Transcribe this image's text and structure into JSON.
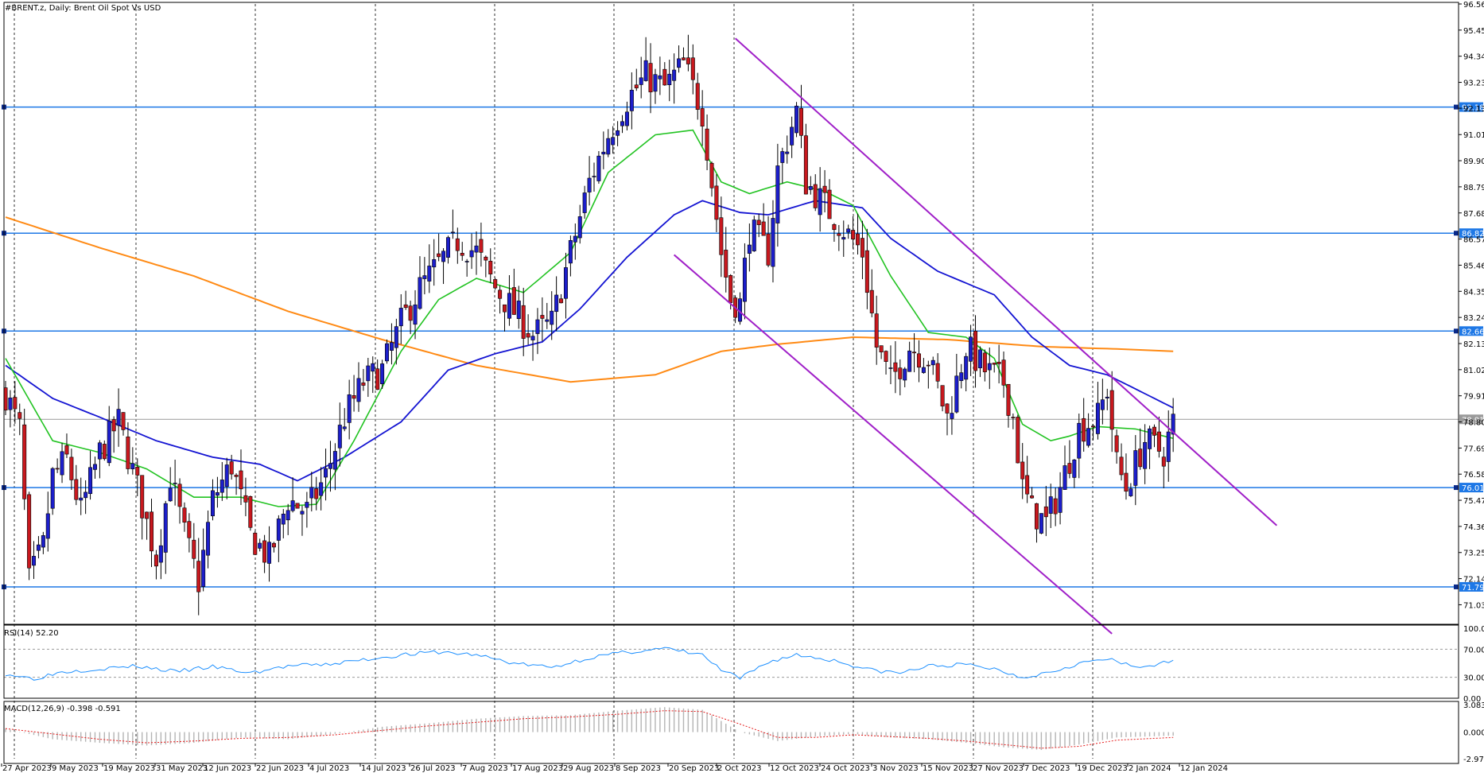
{
  "chart_data": [
    {
      "type": "candlestick",
      "title": "#BRENT.z, Daily:  Brent Oil Spot Vs USD",
      "symbol": "#BRENT.z",
      "timeframe": "Daily",
      "description": "Brent Oil Spot Vs USD",
      "ylim": [
        70.2,
        96.56
      ],
      "y_ticks": [
        "96.56",
        "95.45",
        "94.34",
        "93.23",
        "92.13",
        "91.01",
        "89.90",
        "88.79",
        "87.68",
        "86.57",
        "85.46",
        "84.35",
        "83.24",
        "82.13",
        "81.02",
        "79.91",
        "78.80",
        "77.69",
        "76.58",
        "75.47",
        "74.36",
        "73.25",
        "72.14",
        "71.03"
      ],
      "x_ticks": [
        "27 Apr 2023",
        "9 May 2023",
        "19 May 2023",
        "31 May 2023",
        "12 Jun 2023",
        "22 Jun 2023",
        "4 Jul 2023",
        "14 Jul 2023",
        "26 Jul 2023",
        "7 Aug 2023",
        "17 Aug 2023",
        "29 Aug 2023",
        "8 Sep 2023",
        "20 Sep 2023",
        "2 Oct 2023",
        "12 Oct 2023",
        "24 Oct 2023",
        "3 Nov 2023",
        "15 Nov 2023",
        "27 Nov 2023",
        "7 Dec 2023",
        "19 Dec 2023",
        "2 Jan 2024",
        "12 Jan 2024"
      ],
      "grid": true,
      "current_price": "78.91",
      "horizontal_levels": [
        {
          "value": 92.18,
          "label": "92.18"
        },
        {
          "value": 86.82,
          "label": "86.82"
        },
        {
          "value": 82.66,
          "label": "82.66"
        },
        {
          "value": 76.01,
          "label": "76.01"
        },
        {
          "value": 71.79,
          "label": "71.79"
        }
      ],
      "colors": {
        "bull": "#1c1ecb",
        "bear": "#c8181e",
        "ma_fast": "#22c322",
        "ma_mid": "#1414d2",
        "ma_slow": "#ff8a14",
        "level": "#1e78e6",
        "channel": "#a020c8"
      },
      "channel": {
        "upper": [
          {
            "i": 155,
            "v": 95.1
          },
          {
            "i": 270,
            "v": 74.4
          }
        ],
        "lower": [
          {
            "i": 142,
            "v": 85.9
          },
          {
            "i": 235,
            "v": 69.8
          }
        ]
      },
      "close_anchors": [
        [
          0,
          80
        ],
        [
          3,
          78.5
        ],
        [
          5,
          72
        ],
        [
          8,
          73.5
        ],
        [
          10,
          76.5
        ],
        [
          13,
          77.2
        ],
        [
          16,
          75
        ],
        [
          20,
          77.5
        ],
        [
          24,
          78.8
        ],
        [
          28,
          76
        ],
        [
          32,
          73
        ],
        [
          35,
          76.5
        ],
        [
          38,
          74
        ],
        [
          41,
          72
        ],
        [
          44,
          75.5
        ],
        [
          48,
          77
        ],
        [
          52,
          74
        ],
        [
          56,
          73
        ],
        [
          60,
          75.5
        ],
        [
          64,
          75
        ],
        [
          68,
          76.5
        ],
        [
          72,
          79
        ],
        [
          76,
          80.5
        ],
        [
          80,
          81
        ],
        [
          84,
          83
        ],
        [
          88,
          84.5
        ],
        [
          92,
          85.5
        ],
        [
          96,
          86.5
        ],
        [
          100,
          86
        ],
        [
          104,
          84.5
        ],
        [
          108,
          83.5
        ],
        [
          112,
          82.5
        ],
        [
          116,
          83
        ],
        [
          120,
          86
        ],
        [
          124,
          89
        ],
        [
          128,
          91
        ],
        [
          132,
          92.5
        ],
        [
          136,
          93.5
        ],
        [
          140,
          93
        ],
        [
          144,
          94
        ],
        [
          148,
          92
        ],
        [
          150,
          89
        ],
        [
          152,
          86
        ],
        [
          154,
          84
        ],
        [
          156,
          83.8
        ],
        [
          158,
          87
        ],
        [
          162,
          86
        ],
        [
          164,
          89.5
        ],
        [
          168,
          92
        ],
        [
          170,
          89
        ],
        [
          174,
          88
        ],
        [
          178,
          87
        ],
        [
          182,
          86
        ],
        [
          185,
          82
        ],
        [
          188,
          80.5
        ],
        [
          192,
          82
        ],
        [
          196,
          81.5
        ],
        [
          200,
          79
        ],
        [
          204,
          82
        ],
        [
          208,
          81
        ],
        [
          212,
          80.5
        ],
        [
          214,
          79
        ],
        [
          216,
          76
        ],
        [
          218,
          75
        ],
        [
          221,
          74.5
        ],
        [
          224,
          76
        ],
        [
          228,
          78.5
        ],
        [
          232,
          79
        ],
        [
          234,
          80.2
        ],
        [
          236,
          77
        ],
        [
          238,
          76
        ],
        [
          242,
          78
        ],
        [
          246,
          77.5
        ],
        [
          248,
          78.8
        ]
      ],
      "ma_fast_anchors": [
        [
          0,
          81.5
        ],
        [
          10,
          78
        ],
        [
          20,
          77.5
        ],
        [
          30,
          76.8
        ],
        [
          40,
          75.6
        ],
        [
          50,
          75.6
        ],
        [
          58,
          75.2
        ],
        [
          66,
          75.3
        ],
        [
          74,
          78
        ],
        [
          84,
          81.8
        ],
        [
          92,
          84
        ],
        [
          100,
          84.9
        ],
        [
          110,
          84.3
        ],
        [
          120,
          86
        ],
        [
          128,
          89.4
        ],
        [
          138,
          91
        ],
        [
          146,
          91.2
        ],
        [
          152,
          89
        ],
        [
          158,
          88.5
        ],
        [
          166,
          89
        ],
        [
          174,
          88.6
        ],
        [
          180,
          88
        ],
        [
          188,
          85
        ],
        [
          196,
          82.6
        ],
        [
          204,
          82.4
        ],
        [
          210,
          81.5
        ],
        [
          216,
          78.7
        ],
        [
          222,
          78
        ],
        [
          226,
          78.2
        ],
        [
          232,
          78.6
        ],
        [
          240,
          78.5
        ],
        [
          248,
          78.1
        ]
      ],
      "ma_mid_anchors": [
        [
          0,
          81.2
        ],
        [
          10,
          79.8
        ],
        [
          20,
          79
        ],
        [
          32,
          78
        ],
        [
          44,
          77.3
        ],
        [
          54,
          77
        ],
        [
          62,
          76.3
        ],
        [
          72,
          77.3
        ],
        [
          84,
          78.8
        ],
        [
          94,
          81
        ],
        [
          104,
          81.7
        ],
        [
          114,
          82.2
        ],
        [
          122,
          83.6
        ],
        [
          132,
          85.8
        ],
        [
          142,
          87.6
        ],
        [
          148,
          88.2
        ],
        [
          156,
          87.7
        ],
        [
          162,
          87.6
        ],
        [
          172,
          88.2
        ],
        [
          182,
          87.9
        ],
        [
          188,
          86.6
        ],
        [
          198,
          85.2
        ],
        [
          210,
          84.2
        ],
        [
          218,
          82.4
        ],
        [
          226,
          81.2
        ],
        [
          234,
          80.8
        ],
        [
          242,
          80
        ],
        [
          248,
          79.4
        ]
      ],
      "ma_slow_anchors": [
        [
          0,
          87.5
        ],
        [
          20,
          86.2
        ],
        [
          40,
          85
        ],
        [
          60,
          83.5
        ],
        [
          80,
          82.3
        ],
        [
          100,
          81.2
        ],
        [
          120,
          80.5
        ],
        [
          138,
          80.8
        ],
        [
          152,
          81.8
        ],
        [
          164,
          82.1
        ],
        [
          180,
          82.4
        ],
        [
          200,
          82.3
        ],
        [
          220,
          82
        ],
        [
          236,
          81.9
        ],
        [
          248,
          81.8
        ]
      ],
      "dates_count": 249
    },
    {
      "type": "line",
      "title": "RSI(14) 52.20",
      "ylim": [
        0,
        100
      ],
      "y_ticks": [
        "100.00",
        "70.00",
        "30.00",
        "0.00"
      ],
      "levels": [
        70,
        30
      ],
      "color": "#1e90ff",
      "value_anchors": [
        [
          0,
          35
        ],
        [
          6,
          28
        ],
        [
          12,
          38
        ],
        [
          20,
          42
        ],
        [
          28,
          46
        ],
        [
          36,
          38
        ],
        [
          44,
          45
        ],
        [
          52,
          36
        ],
        [
          60,
          46
        ],
        [
          68,
          48
        ],
        [
          76,
          55
        ],
        [
          84,
          62
        ],
        [
          92,
          66
        ],
        [
          100,
          62
        ],
        [
          108,
          50
        ],
        [
          116,
          44
        ],
        [
          124,
          58
        ],
        [
          132,
          66
        ],
        [
          140,
          71
        ],
        [
          148,
          62
        ],
        [
          152,
          40
        ],
        [
          156,
          28
        ],
        [
          162,
          52
        ],
        [
          168,
          62
        ],
        [
          176,
          54
        ],
        [
          184,
          40
        ],
        [
          190,
          36
        ],
        [
          196,
          46
        ],
        [
          204,
          48
        ],
        [
          210,
          42
        ],
        [
          216,
          30
        ],
        [
          222,
          38
        ],
        [
          228,
          50
        ],
        [
          234,
          56
        ],
        [
          240,
          44
        ],
        [
          248,
          52
        ]
      ]
    },
    {
      "type": "bar",
      "title": "MACD(12,26,9) -0.398 -0.591",
      "ylim": [
        -2.977,
        3.083
      ],
      "y_ticks": [
        "3.083",
        "0.000",
        "-2.977"
      ],
      "hist_color": "#b4b4b4",
      "signal_color": "#e61e1e",
      "value_anchors": [
        [
          0,
          0.4
        ],
        [
          10,
          -0.8
        ],
        [
          20,
          -1.2
        ],
        [
          30,
          -1.5
        ],
        [
          40,
          -1.2
        ],
        [
          50,
          -0.6
        ],
        [
          60,
          -0.8
        ],
        [
          70,
          -0.2
        ],
        [
          80,
          0.6
        ],
        [
          90,
          1.0
        ],
        [
          100,
          1.5
        ],
        [
          110,
          1.8
        ],
        [
          120,
          1.9
        ],
        [
          130,
          2.4
        ],
        [
          140,
          2.8
        ],
        [
          148,
          2.5
        ],
        [
          156,
          0.0
        ],
        [
          164,
          -1.0
        ],
        [
          172,
          -0.5
        ],
        [
          180,
          -0.2
        ],
        [
          188,
          -0.6
        ],
        [
          196,
          -0.8
        ],
        [
          204,
          -1.2
        ],
        [
          212,
          -1.7
        ],
        [
          220,
          -2.0
        ],
        [
          228,
          -1.4
        ],
        [
          236,
          -0.6
        ],
        [
          248,
          -0.4
        ]
      ],
      "signal_anchors": [
        [
          0,
          0.4
        ],
        [
          10,
          -0.2
        ],
        [
          20,
          -0.8
        ],
        [
          30,
          -1.2
        ],
        [
          40,
          -1.0
        ],
        [
          50,
          -0.7
        ],
        [
          60,
          -0.6
        ],
        [
          70,
          -0.3
        ],
        [
          80,
          0.2
        ],
        [
          90,
          0.7
        ],
        [
          100,
          1.1
        ],
        [
          110,
          1.5
        ],
        [
          120,
          1.7
        ],
        [
          130,
          2.0
        ],
        [
          140,
          2.4
        ],
        [
          148,
          2.3
        ],
        [
          156,
          0.9
        ],
        [
          164,
          -0.6
        ],
        [
          172,
          -0.6
        ],
        [
          180,
          -0.3
        ],
        [
          188,
          -0.5
        ],
        [
          196,
          -0.7
        ],
        [
          204,
          -1.0
        ],
        [
          212,
          -1.4
        ],
        [
          220,
          -1.8
        ],
        [
          228,
          -1.6
        ],
        [
          236,
          -0.9
        ],
        [
          248,
          -0.6
        ]
      ]
    }
  ]
}
